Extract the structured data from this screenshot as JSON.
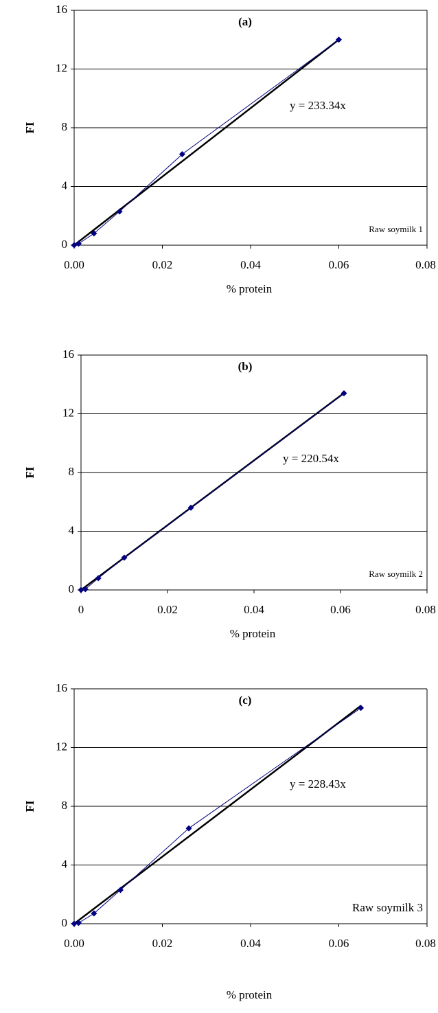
{
  "chart_data": [
    {
      "type": "line",
      "title": "(a)",
      "annotation": "Raw soymilk 1",
      "xlabel": "% protein",
      "ylabel": "FI",
      "trendline": {
        "label": "y = 233.34x",
        "slope": 233.34
      },
      "x": [
        0,
        0.001,
        0.0045,
        0.0103,
        0.0245,
        0.06
      ],
      "values": [
        0,
        0.1,
        0.8,
        2.3,
        6.2,
        14
      ],
      "color": "#000080",
      "xlim": [
        0,
        0.08
      ],
      "xticks": [
        {
          "value": 0,
          "label": "0.00"
        },
        0.02,
        0.04,
        0.06,
        0.08
      ],
      "ylim": [
        0,
        16
      ],
      "yticks": [
        0,
        4,
        8,
        12,
        16
      ],
      "grid": true
    },
    {
      "type": "line",
      "title": "(b)",
      "annotation": "Raw soymilk 2",
      "xlabel": "% protein",
      "ylabel": "FI",
      "trendline": {
        "label": "y = 220.54x",
        "slope": 220.54
      },
      "x": [
        0,
        0.001,
        0.004,
        0.01,
        0.0254,
        0.0608
      ],
      "values": [
        0,
        0.05,
        0.8,
        2.2,
        5.6,
        13.4
      ],
      "color": "#000080",
      "xlim": [
        0,
        0.08
      ],
      "xticks": [
        0,
        0.02,
        0.04,
        0.06,
        0.08
      ],
      "ylim": [
        0,
        16
      ],
      "yticks": [
        0,
        4,
        8,
        12,
        16
      ],
      "grid": true
    },
    {
      "type": "line",
      "title": "(c)",
      "annotation": "Raw soymilk 3",
      "xlabel": "% protein",
      "ylabel": "FI",
      "trendline": {
        "label": "y = 228.43x",
        "slope": 228.43
      },
      "x": [
        0,
        0.001,
        0.0045,
        0.0105,
        0.026,
        0.065
      ],
      "values": [
        0,
        0.05,
        0.7,
        2.3,
        6.5,
        14.7
      ],
      "color": "#000080",
      "xlim": [
        0,
        0.08
      ],
      "xticks": [
        {
          "value": 0,
          "label": "0.00"
        },
        0.02,
        0.04,
        0.06,
        0.08
      ],
      "ylim": [
        0,
        16
      ],
      "yticks": [
        0,
        4,
        8,
        12,
        16
      ],
      "grid": true
    }
  ]
}
